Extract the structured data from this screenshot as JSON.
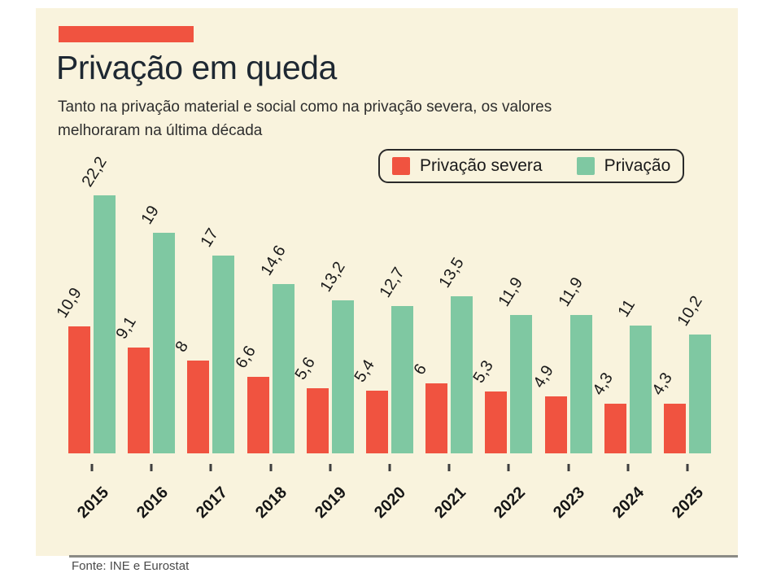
{
  "header": {
    "title": "Privação em queda",
    "subtitle_line1": "Tanto na privação material e social como na privação severa, os valores",
    "subtitle_line2": "melhoraram na última década"
  },
  "legend": {
    "items": [
      {
        "label": "Privação severa",
        "color": "#F05340"
      },
      {
        "label": "Privação",
        "color": "#7FC8A2"
      }
    ]
  },
  "footer": {
    "source": "Fonte: INE e Eurostat"
  },
  "colors": {
    "panel_background": "#F9F3DD",
    "accent_red": "#F05340",
    "series_green": "#7FC8A2",
    "title_text": "#1E2832"
  },
  "chart_data": {
    "type": "bar",
    "categories": [
      "2015",
      "2016",
      "2017",
      "2018",
      "2019",
      "2020",
      "2021",
      "2022",
      "2023",
      "2024",
      "2025"
    ],
    "series": [
      {
        "name": "Privação severa",
        "color": "#F05340",
        "values": [
          10.9,
          9.1,
          8,
          6.6,
          5.6,
          5.4,
          6,
          5.3,
          4.9,
          4.3,
          4.3
        ],
        "labels": [
          "10,9",
          "9,1",
          "8",
          "6,6",
          "5,6",
          "5,4",
          "6",
          "5,3",
          "4,9",
          "4,3",
          "4,3"
        ]
      },
      {
        "name": "Privação",
        "color": "#7FC8A2",
        "values": [
          22.2,
          19,
          17,
          14.6,
          13.2,
          12.7,
          13.5,
          11.9,
          11.9,
          11,
          10.2
        ],
        "labels": [
          "22,2",
          "19",
          "17",
          "14,6",
          "13,2",
          "12,7",
          "13,5",
          "11,9",
          "11,9",
          "11",
          "10,2"
        ]
      }
    ],
    "title": "Privação em queda",
    "xlabel": "",
    "ylabel": "",
    "ylim": [
      0,
      22.2
    ],
    "grid": false,
    "legend_position": "top-right",
    "value_labels_rotation_deg": -58,
    "category_labels_rotation_deg": -45
  }
}
